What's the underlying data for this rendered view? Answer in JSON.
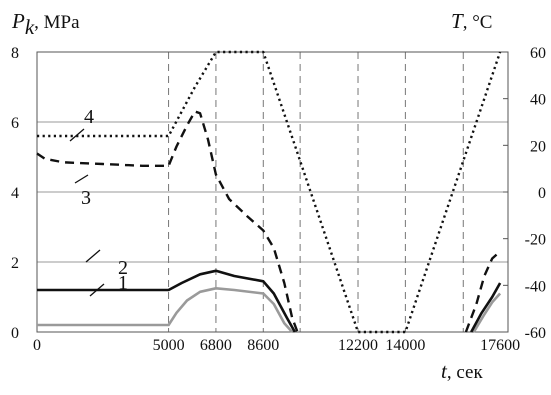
{
  "chart_data": {
    "type": "line",
    "title": "",
    "y_left_label": {
      "symbol": "P",
      "subscript": "k",
      "unit": ", MPa"
    },
    "y_right_label": {
      "symbol": "T",
      "unit": ", °C"
    },
    "x_label": {
      "symbol": "t",
      "unit": ", сек"
    },
    "xlim": [
      0,
      17900
    ],
    "ylim_left": [
      0,
      8
    ],
    "ylim_right": [
      -60,
      60
    ],
    "x_ticks": [
      0,
      5000,
      6800,
      8600,
      12200,
      14000,
      17600
    ],
    "x_tick_labels": [
      "0",
      "5000",
      "6800",
      "8600",
      "12200",
      "14000",
      "17600"
    ],
    "y_left_ticks": [
      0,
      2,
      4,
      6,
      8
    ],
    "y_left_tick_labels": [
      "0",
      "2",
      "4",
      "6",
      "8"
    ],
    "y_right_ticks": [
      -60,
      -40,
      -20,
      0,
      20,
      40,
      60
    ],
    "y_right_tick_labels": [
      "-60",
      "-40",
      "-20",
      "0",
      "20",
      "40",
      "60"
    ],
    "grid": true,
    "vertical_dashed_lines_at": [
      5000,
      6800,
      8600,
      10000,
      12200,
      14000,
      16200
    ],
    "series": [
      {
        "label": "1",
        "axis": "left",
        "style": "solid",
        "color": "#9a9a9a",
        "points": [
          [
            0,
            0.2
          ],
          [
            5000,
            0.2
          ],
          [
            5300,
            0.55
          ],
          [
            5700,
            0.9
          ],
          [
            6200,
            1.15
          ],
          [
            6800,
            1.25
          ],
          [
            7500,
            1.2
          ],
          [
            8600,
            1.1
          ],
          [
            9000,
            0.8
          ],
          [
            9400,
            0.25
          ],
          [
            9700,
            0
          ]
        ],
        "points_tail": [
          [
            16600,
            0
          ],
          [
            17000,
            0.5
          ],
          [
            17300,
            0.85
          ],
          [
            17600,
            1.1
          ]
        ]
      },
      {
        "label": "2",
        "axis": "left",
        "style": "solid",
        "color": "#111111",
        "points": [
          [
            0,
            1.2
          ],
          [
            5000,
            1.2
          ],
          [
            5500,
            1.4
          ],
          [
            6200,
            1.65
          ],
          [
            6800,
            1.75
          ],
          [
            7500,
            1.6
          ],
          [
            8600,
            1.45
          ],
          [
            9000,
            1.1
          ],
          [
            9500,
            0.4
          ],
          [
            9800,
            0
          ]
        ],
        "points_tail": [
          [
            16500,
            0
          ],
          [
            16900,
            0.55
          ],
          [
            17300,
            1.0
          ],
          [
            17600,
            1.4
          ]
        ]
      },
      {
        "label": "3",
        "axis": "left",
        "style": "dashed",
        "color": "#111111",
        "points": [
          [
            0,
            5.1
          ],
          [
            300,
            4.95
          ],
          [
            1000,
            4.85
          ],
          [
            2500,
            4.8
          ],
          [
            4000,
            4.75
          ],
          [
            5000,
            4.75
          ],
          [
            5300,
            5.3
          ],
          [
            5700,
            5.9
          ],
          [
            6000,
            6.3
          ],
          [
            6200,
            6.25
          ],
          [
            6500,
            5.5
          ],
          [
            6800,
            4.5
          ],
          [
            7300,
            3.8
          ],
          [
            8000,
            3.3
          ],
          [
            8600,
            2.9
          ],
          [
            9000,
            2.4
          ],
          [
            9400,
            1.4
          ],
          [
            9700,
            0.4
          ],
          [
            9900,
            0
          ]
        ],
        "points_tail": [
          [
            16300,
            0
          ],
          [
            16700,
            0.8
          ],
          [
            17000,
            1.6
          ],
          [
            17300,
            2.1
          ],
          [
            17600,
            2.3
          ]
        ]
      },
      {
        "label": "4",
        "axis": "right",
        "style": "dotted",
        "color": "#111111",
        "points": [
          [
            0,
            24
          ],
          [
            5000,
            24
          ],
          [
            6000,
            45
          ],
          [
            6800,
            60
          ],
          [
            8600,
            60
          ],
          [
            12200,
            -60
          ],
          [
            14000,
            -60
          ],
          [
            17600,
            60
          ]
        ]
      }
    ]
  }
}
